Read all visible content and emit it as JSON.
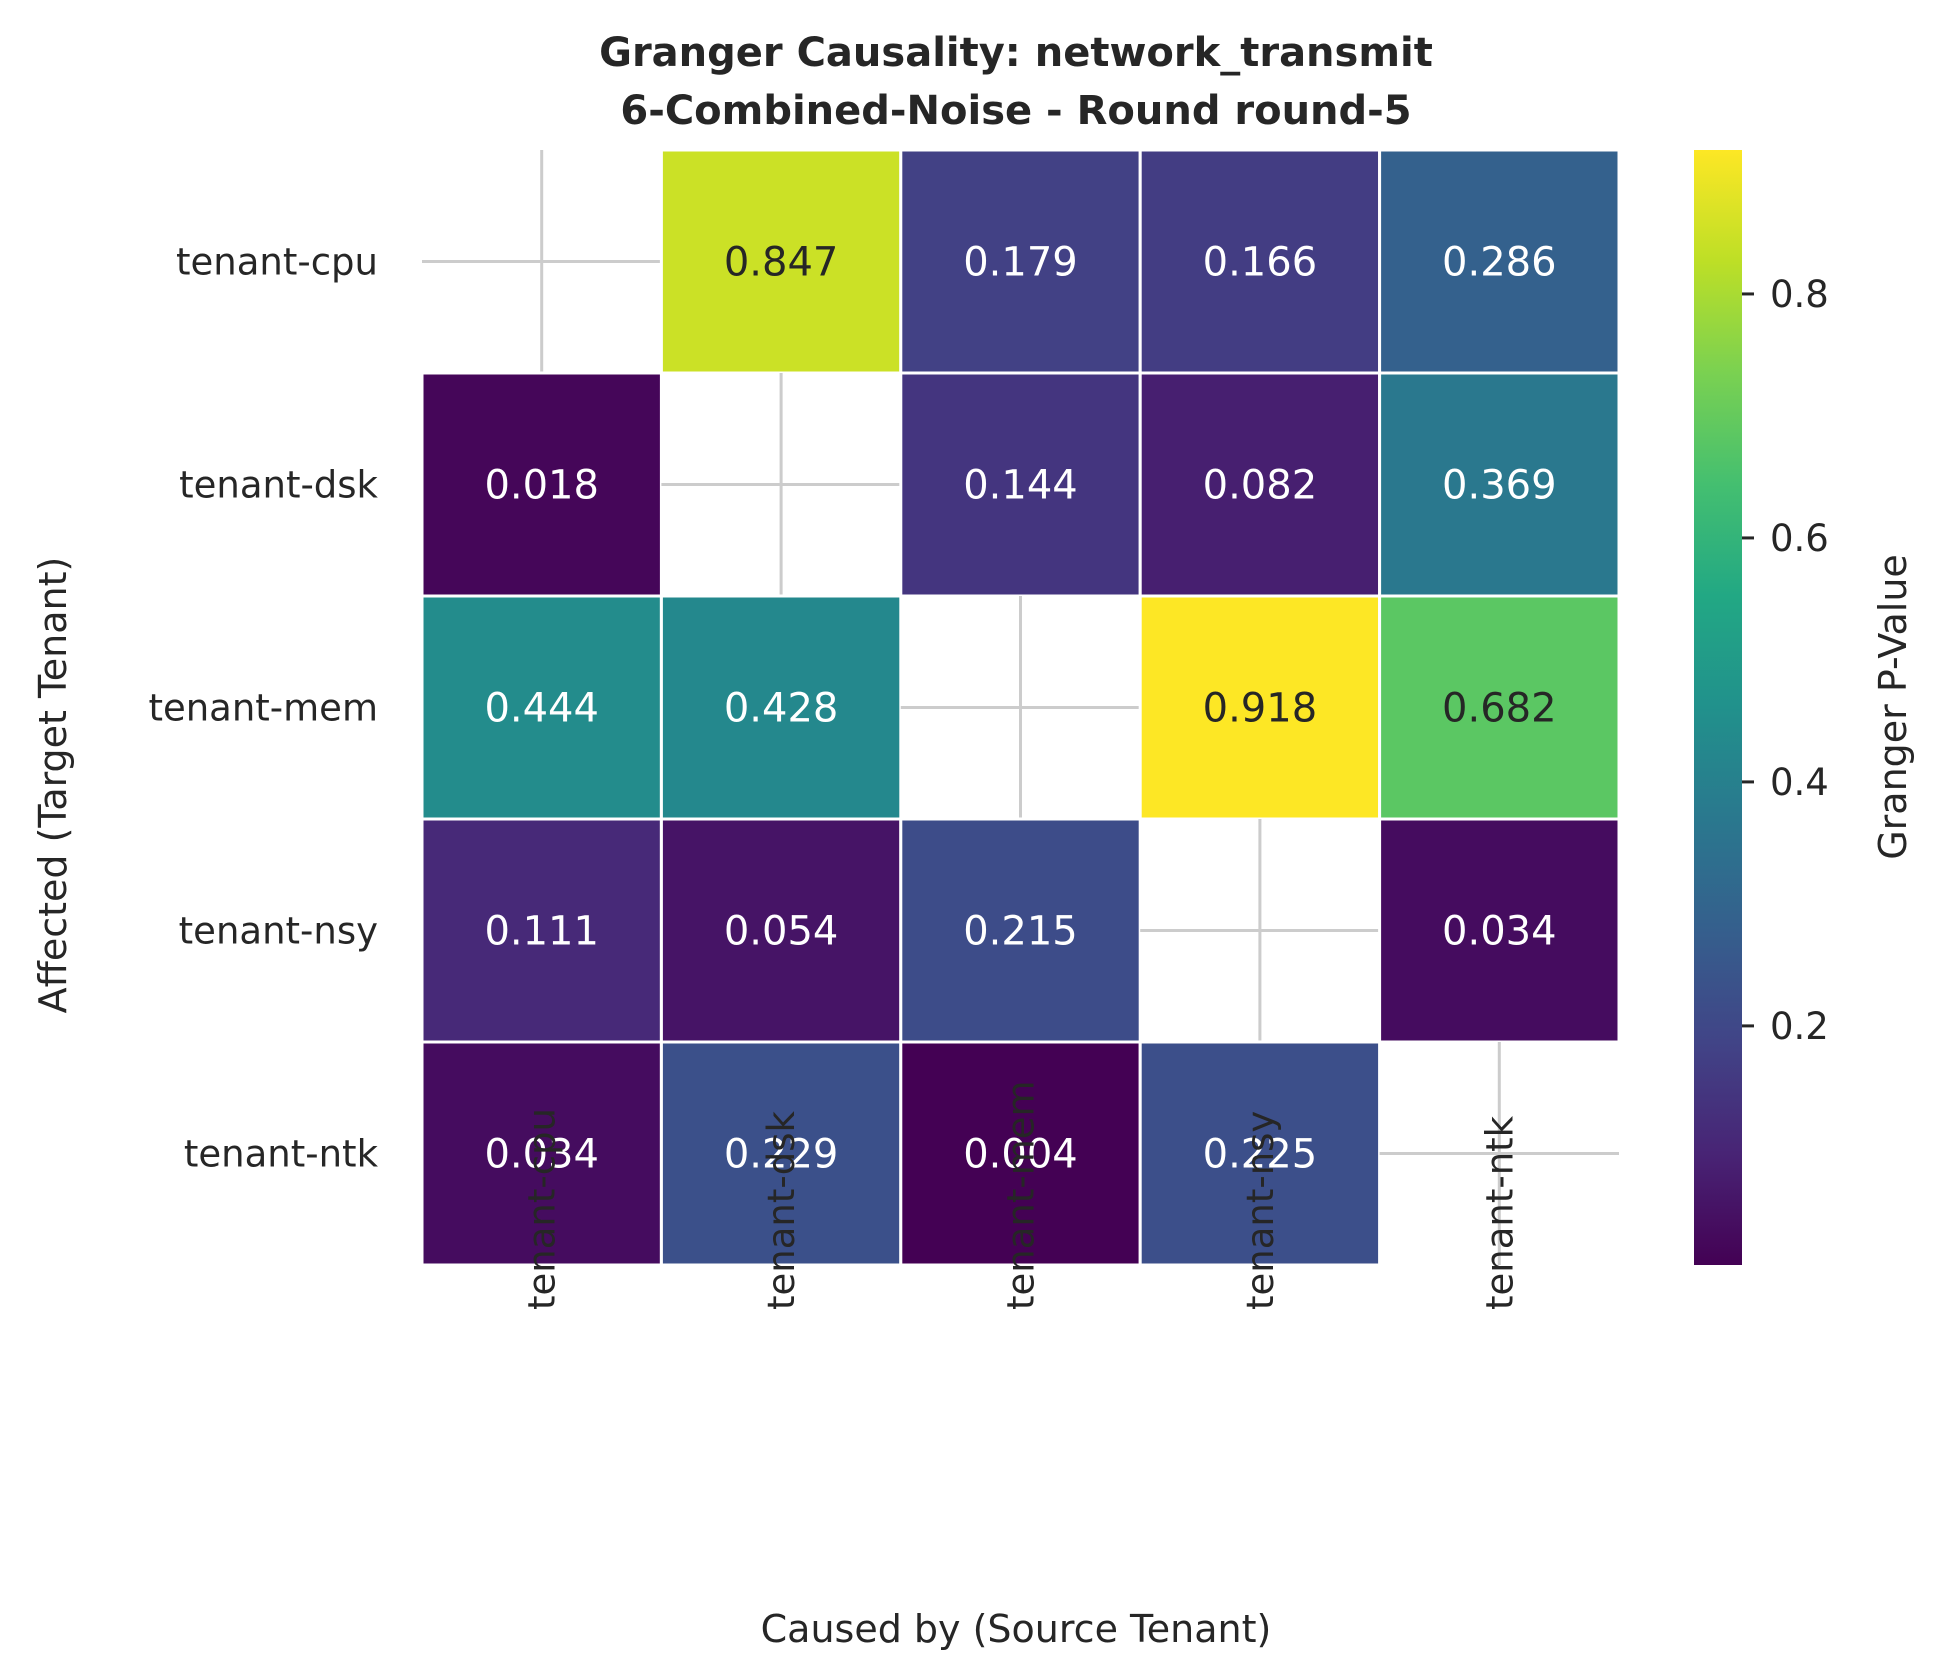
{
  "chart_data": {
    "type": "heatmap",
    "title_line1": "Granger Causality: network_transmit",
    "title_line2": "6-Combined-Noise - Round round-5",
    "xlabel": "Caused by (Source Tenant)",
    "ylabel": "Affected (Target Tenant)",
    "x_categories": [
      "tenant-cpu",
      "tenant-dsk",
      "tenant-mem",
      "tenant-nsy",
      "tenant-ntk"
    ],
    "y_categories": [
      "tenant-cpu",
      "tenant-dsk",
      "tenant-mem",
      "tenant-nsy",
      "tenant-ntk"
    ],
    "values": [
      [
        null,
        0.847,
        0.179,
        0.166,
        0.286
      ],
      [
        0.018,
        null,
        0.144,
        0.082,
        0.369
      ],
      [
        0.444,
        0.428,
        null,
        0.918,
        0.682
      ],
      [
        0.111,
        0.054,
        0.215,
        null,
        0.034
      ],
      [
        0.034,
        0.229,
        0.004,
        0.225,
        null
      ]
    ],
    "colorbar": {
      "label": "Granger P-Value",
      "colormap": "viridis",
      "range": [
        0.004,
        0.918
      ],
      "ticks": [
        "0.2",
        "0.4",
        "0.6",
        "0.8"
      ]
    },
    "diagonal_marker": "cross",
    "grid": true
  }
}
